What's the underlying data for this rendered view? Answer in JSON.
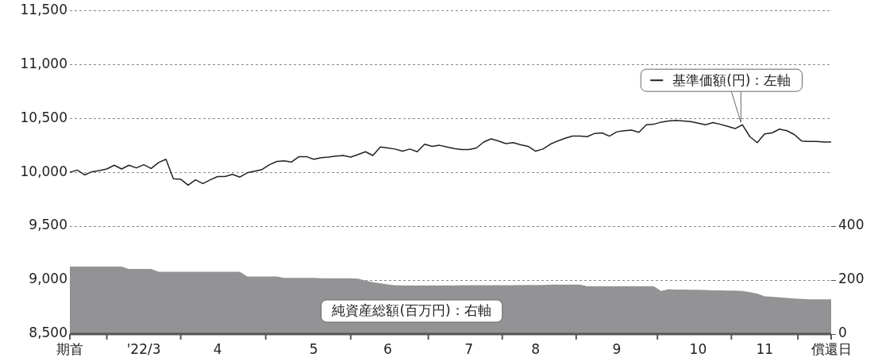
{
  "chart_data": {
    "type": "line",
    "categories": [
      "期首",
      null,
      null,
      null,
      null,
      null,
      null,
      null,
      null,
      null,
      "'22/3",
      null,
      null,
      null,
      null,
      null,
      null,
      null,
      null,
      null,
      "4",
      null,
      null,
      null,
      null,
      null,
      null,
      null,
      null,
      null,
      null,
      null,
      null,
      "5",
      null,
      null,
      null,
      null,
      null,
      null,
      null,
      null,
      null,
      "6",
      null,
      null,
      null,
      null,
      null,
      null,
      null,
      null,
      null,
      null,
      "7",
      null,
      null,
      null,
      null,
      null,
      null,
      null,
      null,
      "8",
      null,
      null,
      null,
      null,
      null,
      null,
      null,
      null,
      null,
      null,
      "9",
      null,
      null,
      null,
      null,
      null,
      null,
      null,
      null,
      null,
      null,
      "10",
      null,
      null,
      null,
      null,
      null,
      null,
      null,
      null,
      "11",
      null,
      null,
      null,
      null,
      null,
      null,
      null,
      null,
      "償還日"
    ],
    "ylim": [
      8500,
      11500
    ],
    "yticks": [
      {
        "value": 8500,
        "label": "8,500"
      },
      {
        "value": 9000,
        "label": "9,000"
      },
      {
        "value": 9500,
        "label": "9,500"
      },
      {
        "value": 10000,
        "label": "10,000"
      },
      {
        "value": 10500,
        "label": "10,500"
      },
      {
        "value": 11000,
        "label": "11,000"
      },
      {
        "value": 11500,
        "label": "11,500"
      }
    ],
    "y2lim": [
      0,
      1200
    ],
    "y2ticks": [
      0,
      200,
      400
    ],
    "grid": "y",
    "marker": "none",
    "series": [
      {
        "name": "純資産総額(百万円)：右軸",
        "type": "area",
        "axis": "y2",
        "color": "#939396",
        "values": [
          250,
          250,
          250,
          250,
          250,
          250,
          250,
          250,
          241,
          241,
          241,
          241,
          231,
          231,
          231,
          231,
          231,
          231,
          231,
          231,
          231,
          231,
          231,
          231,
          213,
          213,
          213,
          213,
          213,
          208,
          208,
          208,
          208,
          208,
          207,
          207,
          207,
          207,
          207,
          205,
          198,
          192,
          188,
          184,
          181,
          180,
          180,
          180,
          180,
          180,
          180,
          180,
          180,
          181,
          181,
          181,
          181,
          181,
          181,
          181,
          181,
          182,
          182,
          182,
          182,
          183,
          183,
          183,
          183,
          183,
          177,
          177,
          177,
          177,
          177,
          177,
          177,
          177,
          177,
          177,
          160,
          166,
          165,
          165,
          164,
          164,
          163,
          162,
          162,
          161,
          161,
          160,
          155,
          150,
          140,
          138,
          136,
          134,
          132,
          130,
          129,
          129,
          129,
          129
        ]
      },
      {
        "name": "基準価額(円)：左軸",
        "axis": "y",
        "color": "#222222",
        "values": [
          10000,
          10020,
          9975,
          10005,
          10015,
          10030,
          10065,
          10030,
          10065,
          10040,
          10070,
          10035,
          10090,
          10120,
          9940,
          9935,
          9880,
          9930,
          9895,
          9930,
          9960,
          9960,
          9980,
          9955,
          9995,
          10010,
          10025,
          10070,
          10100,
          10105,
          10095,
          10145,
          10145,
          10120,
          10135,
          10140,
          10150,
          10155,
          10140,
          10165,
          10190,
          10155,
          10235,
          10225,
          10215,
          10195,
          10215,
          10190,
          10260,
          10240,
          10250,
          10235,
          10220,
          10210,
          10210,
          10225,
          10280,
          10310,
          10290,
          10265,
          10275,
          10255,
          10240,
          10195,
          10215,
          10260,
          10290,
          10315,
          10335,
          10335,
          10330,
          10360,
          10365,
          10335,
          10375,
          10385,
          10390,
          10370,
          10440,
          10445,
          10465,
          10475,
          10480,
          10475,
          10470,
          10455,
          10440,
          10460,
          10445,
          10425,
          10405,
          10440,
          10330,
          10275,
          10355,
          10365,
          10400,
          10385,
          10350,
          10290,
          10285,
          10285,
          10280,
          10280
        ]
      }
    ]
  }
}
